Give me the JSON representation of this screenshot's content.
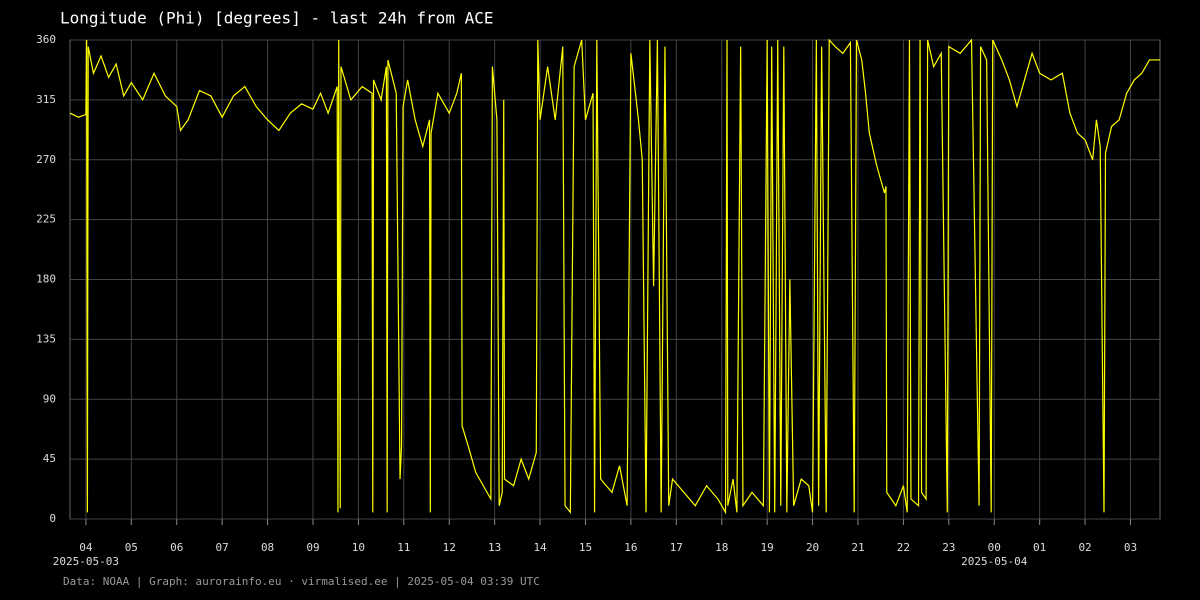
{
  "chart_data": {
    "type": "line",
    "title": "Longitude (Phi) [degrees] - last 24h from ACE",
    "footer": "Data: NOAA | Graph: aurorainfo.eu · virmalised.ee | 2025-05-04 03:39 UTC",
    "color": "#ffff00",
    "grid": true,
    "xlim": [
      "2025-05-03T03:39",
      "2025-05-04T03:39"
    ],
    "ylim": [
      0,
      360
    ],
    "yticks": [
      0,
      45,
      90,
      135,
      180,
      225,
      270,
      315,
      360
    ],
    "xticks": [
      {
        "value": "2025-05-03T04:00",
        "label": "04"
      },
      {
        "value": "2025-05-03T05:00",
        "label": "05"
      },
      {
        "value": "2025-05-03T06:00",
        "label": "06"
      },
      {
        "value": "2025-05-03T07:00",
        "label": "07"
      },
      {
        "value": "2025-05-03T08:00",
        "label": "08"
      },
      {
        "value": "2025-05-03T09:00",
        "label": "09"
      },
      {
        "value": "2025-05-03T10:00",
        "label": "10"
      },
      {
        "value": "2025-05-03T11:00",
        "label": "11"
      },
      {
        "value": "2025-05-03T12:00",
        "label": "12"
      },
      {
        "value": "2025-05-03T13:00",
        "label": "13"
      },
      {
        "value": "2025-05-03T14:00",
        "label": "14"
      },
      {
        "value": "2025-05-03T15:00",
        "label": "15"
      },
      {
        "value": "2025-05-03T16:00",
        "label": "16"
      },
      {
        "value": "2025-05-03T17:00",
        "label": "17"
      },
      {
        "value": "2025-05-03T18:00",
        "label": "18"
      },
      {
        "value": "2025-05-03T19:00",
        "label": "19"
      },
      {
        "value": "2025-05-03T20:00",
        "label": "20"
      },
      {
        "value": "2025-05-03T21:00",
        "label": "21"
      },
      {
        "value": "2025-05-03T22:00",
        "label": "22"
      },
      {
        "value": "2025-05-03T23:00",
        "label": "23"
      },
      {
        "value": "2025-05-04T00:00",
        "label": "00"
      },
      {
        "value": "2025-05-04T01:00",
        "label": "01"
      },
      {
        "value": "2025-05-04T02:00",
        "label": "02"
      },
      {
        "value": "2025-05-04T03:00",
        "label": "03"
      }
    ],
    "xdate_labels": [
      {
        "value": "2025-05-03T04:00",
        "label": "2025-05-03"
      },
      {
        "value": "2025-05-04T00:00",
        "label": "2025-05-04"
      }
    ],
    "x": [
      "2025-05-03T03:39",
      "2025-05-03T03:50",
      "2025-05-03T04:00",
      "2025-05-03T04:01",
      "2025-05-03T04:02",
      "2025-05-03T04:03",
      "2025-05-03T04:10",
      "2025-05-03T04:20",
      "2025-05-03T04:30",
      "2025-05-03T04:40",
      "2025-05-03T04:50",
      "2025-05-03T05:00",
      "2025-05-03T05:15",
      "2025-05-03T05:30",
      "2025-05-03T05:45",
      "2025-05-03T06:00",
      "2025-05-03T06:05",
      "2025-05-03T06:15",
      "2025-05-03T06:30",
      "2025-05-03T06:45",
      "2025-05-03T07:00",
      "2025-05-03T07:15",
      "2025-05-03T07:30",
      "2025-05-03T07:45",
      "2025-05-03T08:00",
      "2025-05-03T08:15",
      "2025-05-03T08:30",
      "2025-05-03T08:45",
      "2025-05-03T09:00",
      "2025-05-03T09:10",
      "2025-05-03T09:20",
      "2025-05-03T09:32",
      "2025-05-03T09:33",
      "2025-05-03T09:34",
      "2025-05-03T09:36",
      "2025-05-03T09:37",
      "2025-05-03T09:50",
      "2025-05-03T10:05",
      "2025-05-03T10:18",
      "2025-05-03T10:19",
      "2025-05-03T10:20",
      "2025-05-03T10:30",
      "2025-05-03T10:37",
      "2025-05-03T10:38",
      "2025-05-03T10:39",
      "2025-05-03T10:50",
      "2025-05-03T10:55",
      "2025-05-03T10:57",
      "2025-05-03T10:59",
      "2025-05-03T11:05",
      "2025-05-03T11:15",
      "2025-05-03T11:25",
      "2025-05-03T11:34",
      "2025-05-03T11:35",
      "2025-05-03T11:36",
      "2025-05-03T11:45",
      "2025-05-03T12:00",
      "2025-05-03T12:10",
      "2025-05-03T12:16",
      "2025-05-03T12:17",
      "2025-05-03T12:25",
      "2025-05-03T12:35",
      "2025-05-03T12:45",
      "2025-05-03T12:55",
      "2025-05-03T12:57",
      "2025-05-03T13:03",
      "2025-05-03T13:06",
      "2025-05-03T13:10",
      "2025-05-03T13:12",
      "2025-05-03T13:13",
      "2025-05-03T13:25",
      "2025-05-03T13:35",
      "2025-05-03T13:45",
      "2025-05-03T13:55",
      "2025-05-03T13:57",
      "2025-05-03T14:00",
      "2025-05-03T14:10",
      "2025-05-03T14:20",
      "2025-05-03T14:30",
      "2025-05-03T14:33",
      "2025-05-03T14:40",
      "2025-05-03T14:45",
      "2025-05-03T14:55",
      "2025-05-03T15:00",
      "2025-05-03T15:10",
      "2025-05-03T15:12",
      "2025-05-03T15:15",
      "2025-05-03T15:20",
      "2025-05-03T15:35",
      "2025-05-03T15:45",
      "2025-05-03T15:55",
      "2025-05-03T16:00",
      "2025-05-03T16:10",
      "2025-05-03T16:15",
      "2025-05-03T16:20",
      "2025-05-03T16:25",
      "2025-05-03T16:30",
      "2025-05-03T16:35",
      "2025-05-03T16:40",
      "2025-05-03T16:45",
      "2025-05-03T16:50",
      "2025-05-03T16:55",
      "2025-05-03T17:10",
      "2025-05-03T17:25",
      "2025-05-03T17:40",
      "2025-05-03T17:55",
      "2025-05-03T18:05",
      "2025-05-03T18:07",
      "2025-05-03T18:08",
      "2025-05-03T18:15",
      "2025-05-03T18:20",
      "2025-05-03T18:25",
      "2025-05-03T18:28",
      "2025-05-03T18:40",
      "2025-05-03T18:55",
      "2025-05-03T19:00",
      "2025-05-03T19:03",
      "2025-05-03T19:06",
      "2025-05-03T19:10",
      "2025-05-03T19:14",
      "2025-05-03T19:18",
      "2025-05-03T19:22",
      "2025-05-03T19:26",
      "2025-05-03T19:30",
      "2025-05-03T19:35",
      "2025-05-03T19:45",
      "2025-05-03T19:55",
      "2025-05-03T20:00",
      "2025-05-03T20:05",
      "2025-05-03T20:08",
      "2025-05-03T20:12",
      "2025-05-03T20:18",
      "2025-05-03T20:22",
      "2025-05-03T20:30",
      "2025-05-03T20:40",
      "2025-05-03T20:50",
      "2025-05-03T20:55",
      "2025-05-03T20:58",
      "2025-05-03T21:05",
      "2025-05-03T21:10",
      "2025-05-03T21:15",
      "2025-05-03T21:25",
      "2025-05-03T21:35",
      "2025-05-03T21:37",
      "2025-05-03T21:38",
      "2025-05-03T21:50",
      "2025-05-03T22:00",
      "2025-05-03T22:05",
      "2025-05-03T22:08",
      "2025-05-03T22:10",
      "2025-05-03T22:20",
      "2025-05-03T22:22",
      "2025-05-03T22:24",
      "2025-05-03T22:30",
      "2025-05-03T22:32",
      "2025-05-03T22:40",
      "2025-05-03T22:50",
      "2025-05-03T22:58",
      "2025-05-03T23:00",
      "2025-05-03T23:15",
      "2025-05-03T23:30",
      "2025-05-03T23:40",
      "2025-05-03T23:42",
      "2025-05-03T23:50",
      "2025-05-03T23:56",
      "2025-05-03T23:58",
      "2025-05-04T00:10",
      "2025-05-04T00:20",
      "2025-05-04T00:30",
      "2025-05-04T00:40",
      "2025-05-04T00:50",
      "2025-05-04T01:00",
      "2025-05-04T01:15",
      "2025-05-04T01:30",
      "2025-05-04T01:40",
      "2025-05-04T01:50",
      "2025-05-04T02:00",
      "2025-05-04T02:10",
      "2025-05-04T02:15",
      "2025-05-04T02:20",
      "2025-05-04T02:25",
      "2025-05-04T02:27",
      "2025-05-04T02:35",
      "2025-05-04T02:45",
      "2025-05-04T02:55",
      "2025-05-04T03:05",
      "2025-05-04T03:15",
      "2025-05-04T03:25",
      "2025-05-04T03:39"
    ],
    "values": [
      305,
      302,
      304,
      360,
      5,
      355,
      335,
      348,
      332,
      342,
      318,
      328,
      315,
      335,
      318,
      310,
      292,
      300,
      322,
      318,
      302,
      318,
      325,
      310,
      300,
      292,
      305,
      312,
      308,
      320,
      305,
      325,
      5,
      360,
      8,
      340,
      315,
      325,
      320,
      5,
      330,
      315,
      340,
      5,
      345,
      320,
      30,
      55,
      310,
      330,
      300,
      280,
      300,
      5,
      290,
      320,
      305,
      320,
      335,
      70,
      55,
      35,
      25,
      15,
      340,
      300,
      10,
      20,
      315,
      30,
      25,
      45,
      30,
      50,
      360,
      300,
      340,
      300,
      355,
      10,
      5,
      340,
      360,
      300,
      320,
      5,
      360,
      30,
      20,
      40,
      10,
      350,
      300,
      270,
      5,
      360,
      175,
      360,
      5,
      355,
      10,
      30,
      20,
      10,
      25,
      15,
      5,
      360,
      10,
      30,
      5,
      355,
      10,
      20,
      10,
      360,
      5,
      355,
      5,
      360,
      10,
      355,
      5,
      180,
      10,
      30,
      25,
      5,
      360,
      10,
      355,
      5,
      360,
      355,
      350,
      358,
      5,
      360,
      345,
      320,
      290,
      265,
      245,
      250,
      20,
      10,
      25,
      5,
      360,
      15,
      10,
      360,
      20,
      15,
      360,
      340,
      350,
      5,
      355,
      350,
      360,
      10,
      355,
      345,
      5,
      360,
      345,
      330,
      310,
      330,
      350,
      335,
      330,
      335,
      305,
      290,
      285,
      270,
      300,
      280,
      5,
      275,
      295,
      300,
      320,
      330,
      335,
      345,
      345
    ]
  }
}
